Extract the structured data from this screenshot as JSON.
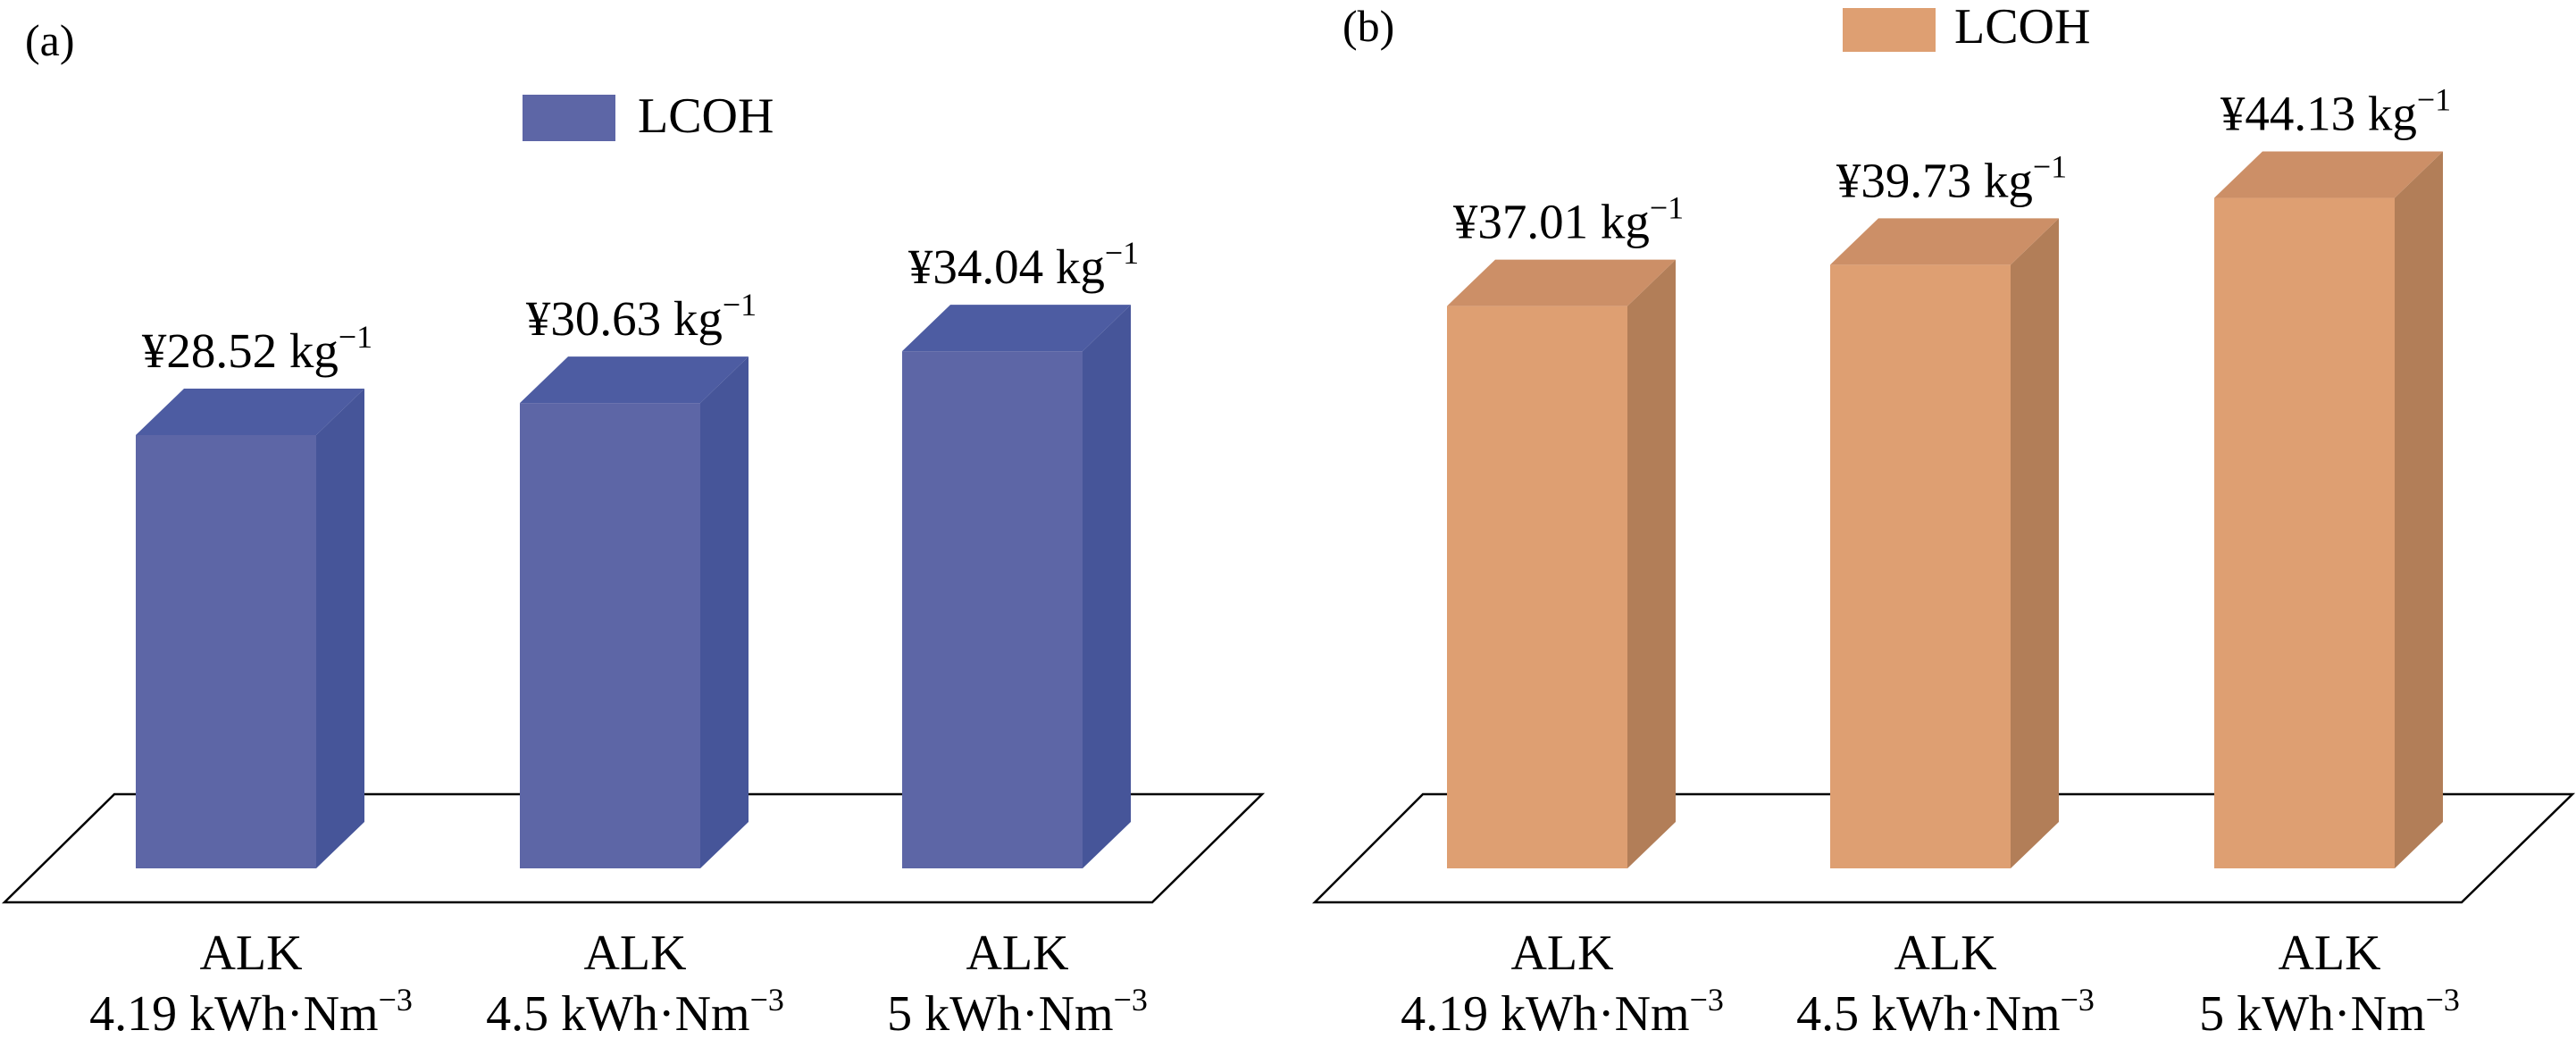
{
  "chart_data": [
    {
      "type": "bar",
      "panel_label": "(a)",
      "legend": [
        "LCOH"
      ],
      "categories": [
        {
          "line1": "ALK",
          "line2": "4.19 kWh·Nm",
          "line2_sup": "−3"
        },
        {
          "line1": "ALK",
          "line2": "4.5 kWh·Nm",
          "line2_sup": "−3"
        },
        {
          "line1": "ALK",
          "line2": "5 kWh·Nm",
          "line2_sup": "−3"
        }
      ],
      "values": [
        28.52,
        30.63,
        34.04
      ],
      "value_labels": [
        "¥28.52 kg",
        "¥30.63 kg",
        "¥34.04 kg"
      ],
      "value_label_sup": "−1",
      "unit": "¥ kg⁻¹",
      "ylim": [
        0,
        40
      ],
      "colors": {
        "front": "#5d66a6",
        "side": "#465599",
        "top": "#4d5ca2"
      }
    },
    {
      "type": "bar",
      "panel_label": "(b)",
      "legend": [
        "LCOH"
      ],
      "categories": [
        {
          "line1": "ALK",
          "line2": "4.19 kWh·Nm",
          "line2_sup": "−3"
        },
        {
          "line1": "ALK",
          "line2": "4.5 kWh·Nm",
          "line2_sup": "−3"
        },
        {
          "line1": "ALK",
          "line2": "5 kWh·Nm",
          "line2_sup": "−3"
        }
      ],
      "values": [
        37.01,
        39.73,
        44.13
      ],
      "value_labels": [
        "¥37.01 kg",
        "¥39.73 kg",
        "¥44.13 kg"
      ],
      "value_label_sup": "−1",
      "unit": "¥ kg⁻¹",
      "ylim": [
        0,
        50
      ],
      "colors": {
        "front": "#de9f72",
        "side": "#b27e58",
        "top": "#cc8f67"
      }
    }
  ]
}
